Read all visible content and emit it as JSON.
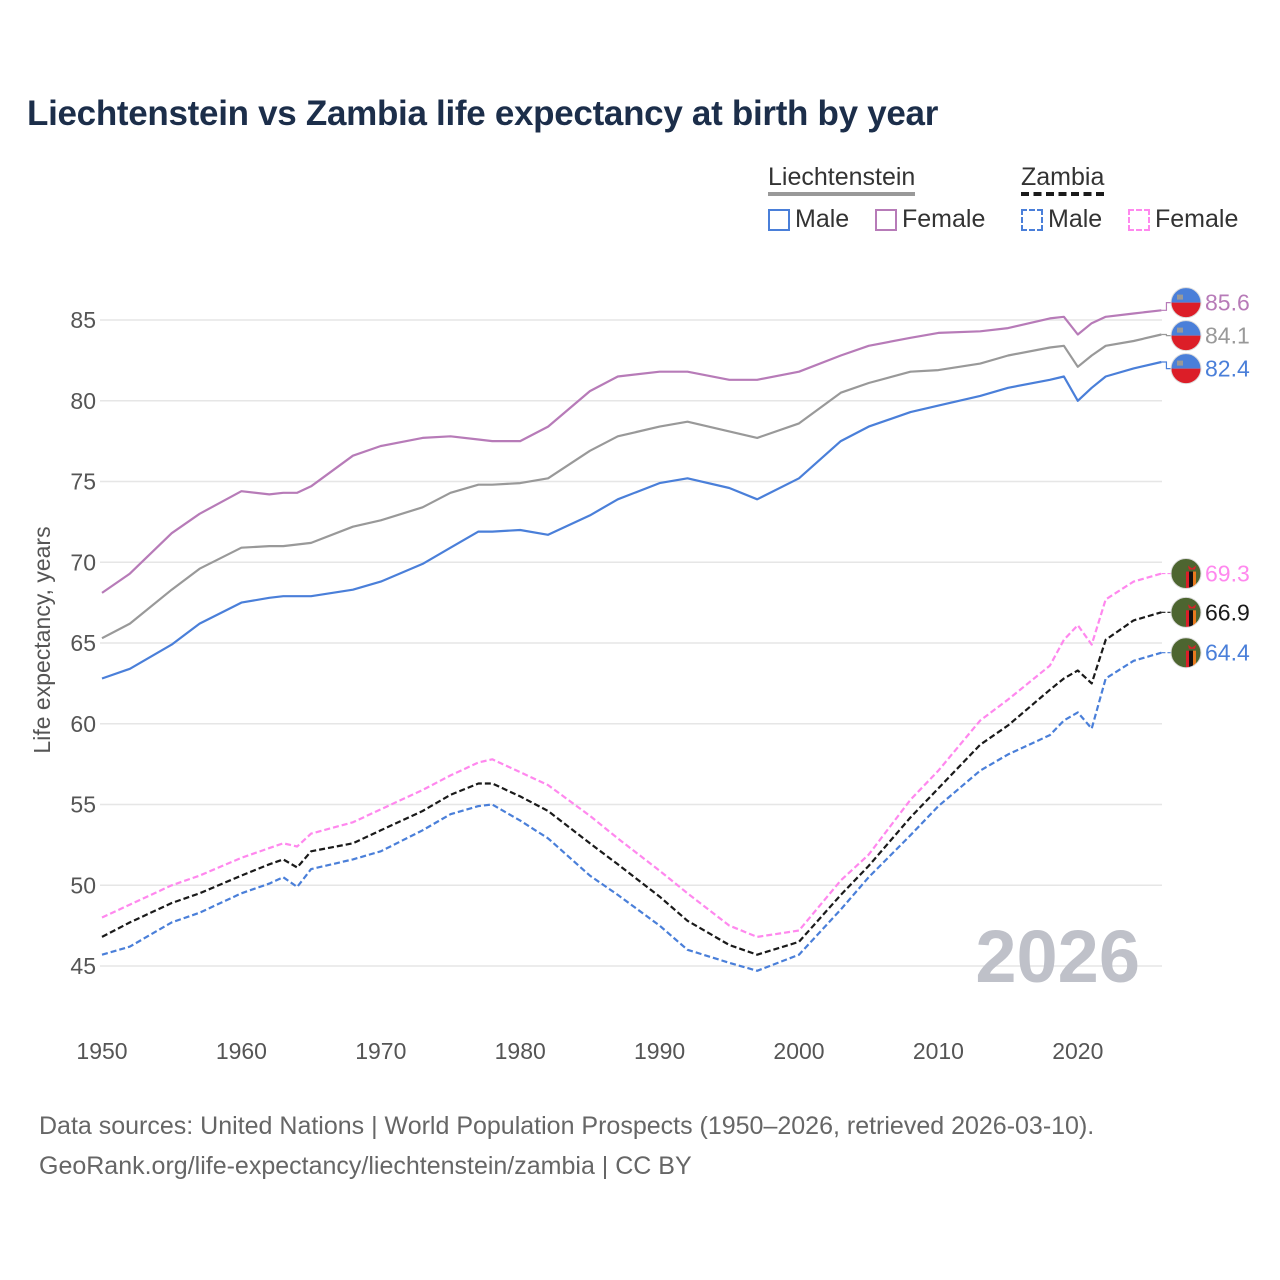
{
  "chart_data": {
    "type": "line",
    "title": "Liechtenstein vs Zambia life expectancy at birth by year",
    "xlabel": "",
    "ylabel": "Life expectancy, years",
    "xlim": [
      1950,
      2026
    ],
    "ylim": [
      43,
      87
    ],
    "xticks": [
      1950,
      1960,
      1970,
      1980,
      1990,
      2000,
      2010,
      2020
    ],
    "yticks": [
      45,
      50,
      55,
      60,
      65,
      70,
      75,
      80,
      85
    ],
    "grid": true,
    "watermark_year": "2026",
    "x": [
      1950,
      1952,
      1955,
      1957,
      1960,
      1962,
      1963,
      1964,
      1965,
      1968,
      1970,
      1973,
      1975,
      1977,
      1978,
      1980,
      1982,
      1985,
      1987,
      1990,
      1992,
      1995,
      1997,
      2000,
      2003,
      2005,
      2008,
      2010,
      2013,
      2015,
      2018,
      2019,
      2020,
      2021,
      2022,
      2024,
      2026
    ],
    "series": [
      {
        "name": "Liechtenstein Female",
        "country": "Liechtenstein",
        "sex": "Female",
        "color": "#b77bb8",
        "dashed": false,
        "end_label": "85.6",
        "flag": "liechtenstein",
        "values": [
          68.1,
          69.3,
          71.8,
          73.0,
          74.4,
          74.2,
          74.3,
          74.3,
          74.7,
          76.6,
          77.2,
          77.7,
          77.8,
          77.6,
          77.5,
          77.5,
          78.4,
          80.6,
          81.5,
          81.8,
          81.8,
          81.3,
          81.3,
          81.8,
          82.8,
          83.4,
          83.9,
          84.2,
          84.3,
          84.5,
          85.1,
          85.2,
          84.1,
          84.8,
          85.2,
          85.4,
          85.6
        ]
      },
      {
        "name": "Liechtenstein Total",
        "country": "Liechtenstein",
        "sex": "Total",
        "color": "#999999",
        "dashed": false,
        "end_label": "84.1",
        "flag": "liechtenstein",
        "values": [
          65.3,
          66.2,
          68.3,
          69.6,
          70.9,
          71.0,
          71.0,
          71.1,
          71.2,
          72.2,
          72.6,
          73.4,
          74.3,
          74.8,
          74.8,
          74.9,
          75.2,
          76.9,
          77.8,
          78.4,
          78.7,
          78.1,
          77.7,
          78.6,
          80.5,
          81.1,
          81.8,
          81.9,
          82.3,
          82.8,
          83.3,
          83.4,
          82.1,
          82.8,
          83.4,
          83.7,
          84.1
        ]
      },
      {
        "name": "Liechtenstein Male",
        "country": "Liechtenstein",
        "sex": "Male",
        "color": "#4a7fd9",
        "dashed": false,
        "end_label": "82.4",
        "flag": "liechtenstein",
        "values": [
          62.8,
          63.4,
          64.9,
          66.2,
          67.5,
          67.8,
          67.9,
          67.9,
          67.9,
          68.3,
          68.8,
          69.9,
          70.9,
          71.9,
          71.9,
          72.0,
          71.7,
          72.9,
          73.9,
          74.9,
          75.2,
          74.6,
          73.9,
          75.2,
          77.5,
          78.4,
          79.3,
          79.7,
          80.3,
          80.8,
          81.3,
          81.5,
          80.0,
          80.8,
          81.5,
          82.0,
          82.4
        ]
      },
      {
        "name": "Zambia Female",
        "country": "Zambia",
        "sex": "Female",
        "color": "#ff88ee",
        "dashed": true,
        "end_label": "69.3",
        "flag": "zambia",
        "values": [
          48.0,
          48.8,
          50.0,
          50.6,
          51.7,
          52.3,
          52.6,
          52.4,
          53.2,
          53.9,
          54.7,
          55.9,
          56.8,
          57.6,
          57.8,
          57.0,
          56.2,
          54.3,
          52.9,
          50.9,
          49.5,
          47.5,
          46.8,
          47.2,
          50.3,
          51.9,
          55.3,
          57.1,
          60.2,
          61.5,
          63.6,
          65.2,
          66.1,
          64.9,
          67.7,
          68.8,
          69.3
        ]
      },
      {
        "name": "Zambia Total",
        "country": "Zambia",
        "sex": "Total",
        "color": "#1a1a1a",
        "dashed": true,
        "end_label": "66.9",
        "flag": "zambia",
        "values": [
          46.8,
          47.7,
          48.9,
          49.5,
          50.6,
          51.3,
          51.6,
          51.1,
          52.1,
          52.6,
          53.4,
          54.6,
          55.6,
          56.3,
          56.3,
          55.5,
          54.6,
          52.6,
          51.3,
          49.3,
          47.8,
          46.3,
          45.7,
          46.5,
          49.4,
          51.2,
          54.2,
          56.0,
          58.7,
          59.9,
          62.1,
          62.8,
          63.3,
          62.5,
          65.2,
          66.4,
          66.9
        ]
      },
      {
        "name": "Zambia Male",
        "country": "Zambia",
        "sex": "Male",
        "color": "#4a7fd9",
        "dashed": true,
        "end_label": "64.4",
        "flag": "zambia",
        "values": [
          45.7,
          46.2,
          47.7,
          48.3,
          49.5,
          50.1,
          50.5,
          49.9,
          51.0,
          51.6,
          52.1,
          53.4,
          54.4,
          54.9,
          55.0,
          54.0,
          52.9,
          50.6,
          49.4,
          47.5,
          46.0,
          45.2,
          44.7,
          45.7,
          48.5,
          50.5,
          53.1,
          54.9,
          57.1,
          58.1,
          59.3,
          60.2,
          60.7,
          59.7,
          62.8,
          63.9,
          64.4
        ]
      }
    ]
  },
  "legend": {
    "group1": "Liechtenstein",
    "group2": "Zambia",
    "items": [
      {
        "label": "Male",
        "color": "#4a7fd9",
        "dashed": false
      },
      {
        "label": "Female",
        "color": "#b77bb8",
        "dashed": false
      },
      {
        "label": "Male",
        "color": "#4a7fd9",
        "dashed": true
      },
      {
        "label": "Female",
        "color": "#ff88ee",
        "dashed": true
      }
    ]
  },
  "footer": {
    "line1": "Data sources: United Nations | World Population Prospects (1950–2026, retrieved 2026-03-10).",
    "line2": "GeoRank.org/life-expectancy/liechtenstein/zambia | CC BY"
  }
}
